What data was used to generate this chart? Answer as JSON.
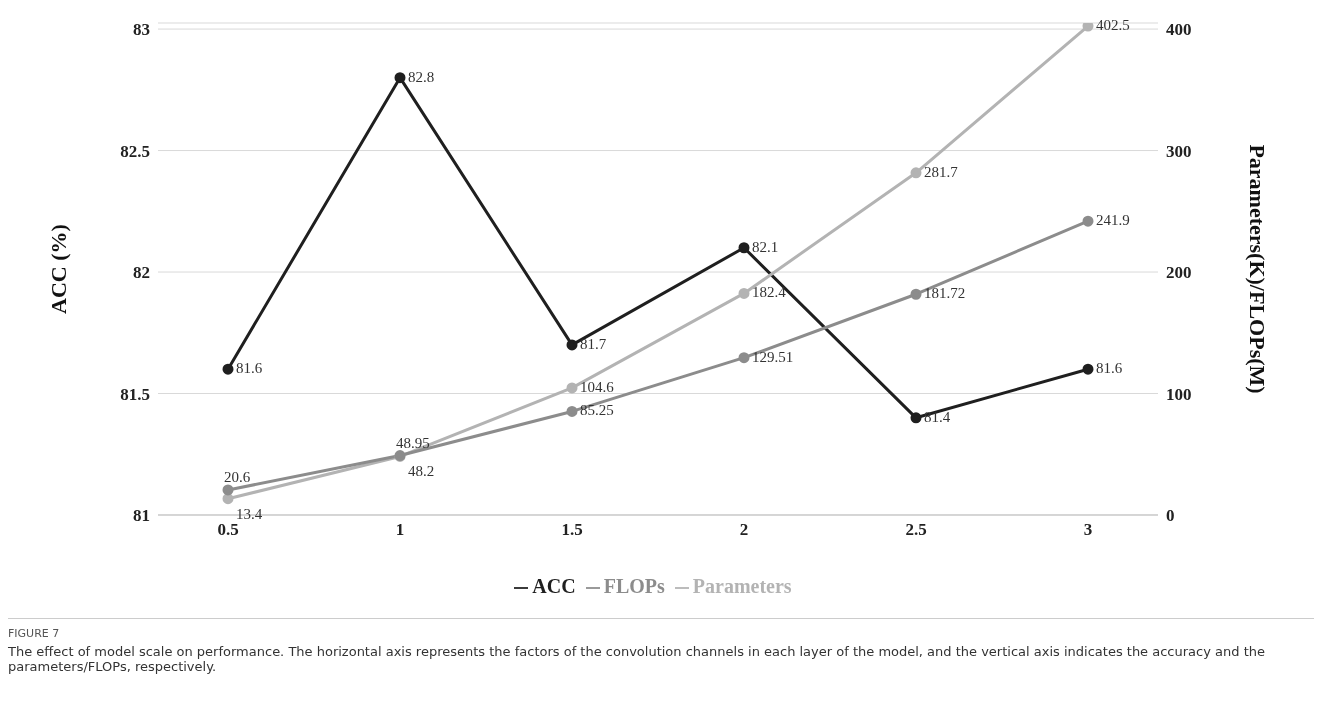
{
  "chart_data": {
    "type": "line",
    "categories": [
      "0.5",
      "1",
      "1.5",
      "2",
      "2.5",
      "3"
    ],
    "series": [
      {
        "name": "ACC",
        "color": "#1f1f1f",
        "values": [
          81.6,
          82.8,
          81.7,
          82.1,
          81.4,
          81.6
        ]
      },
      {
        "name": "Parameters",
        "color": "#b3b3b3",
        "axis": "y2",
        "values": [
          13.4,
          48.2,
          104.6,
          182.4,
          281.7,
          402.5
        ]
      },
      {
        "name": "FLOPs",
        "color": "#8c8c8c",
        "axis": "y2",
        "values": [
          20.6,
          48.95,
          85.25,
          129.51,
          181.72,
          241.9
        ]
      }
    ],
    "ylabel": "ACC (%)",
    "y2label": "Parameters(K)/FLOPs(M)",
    "ylim": [
      81,
      83.025
    ],
    "yticks": [
      81,
      81.5,
      82,
      82.5,
      83
    ],
    "y2lim": [
      0,
      405
    ],
    "y2ticks": [
      0,
      100,
      200,
      300,
      400
    ],
    "grid": "y",
    "legend": "bottom",
    "marker": "circle",
    "line_style": "solid",
    "data_labels": true,
    "annotations": [
      "FIGURE 7",
      "The effect of model scale on performance. The horizontal axis represents the factors of the convolution channels in each layer of the model, and the vertical axis indicates the accuracy and the parameters/FLOPs, respectively."
    ]
  }
}
